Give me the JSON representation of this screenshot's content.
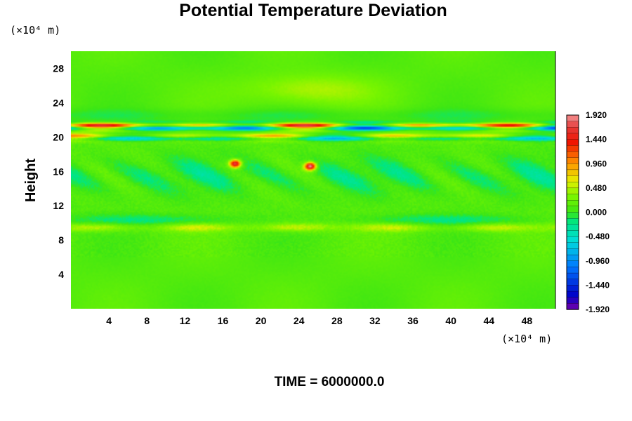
{
  "chart_data": {
    "type": "heatmap",
    "title": "Potential Temperature Deviation",
    "ylabel": "Height",
    "x_unit": "(×10⁴ m)",
    "y_unit": "(×10⁴ m)",
    "xlim": [
      0,
      51
    ],
    "ylim": [
      0,
      30
    ],
    "x_ticks": [
      "4",
      "8",
      "12",
      "16",
      "20",
      "24",
      "28",
      "32",
      "36",
      "40",
      "44",
      "48"
    ],
    "y_ticks": [
      "4",
      "8",
      "12",
      "16",
      "20",
      "24",
      "28"
    ],
    "x_tick_values": [
      4,
      8,
      12,
      16,
      20,
      24,
      28,
      32,
      36,
      40,
      44,
      48
    ],
    "y_tick_values": [
      4,
      8,
      12,
      16,
      20,
      24,
      28
    ],
    "colorbar": {
      "min": -1.92,
      "max": 1.92,
      "labels": [
        "1.920",
        "1.440",
        "0.960",
        "0.480",
        "0.000",
        "-0.480",
        "-0.960",
        "-1.440",
        "-1.920"
      ],
      "label_values": [
        1.92,
        1.44,
        0.96,
        0.48,
        0.0,
        -0.48,
        -0.96,
        -1.44,
        -1.92
      ]
    },
    "field_features": [
      {
        "kind": "wave-band",
        "y": 21.2,
        "amplitude": 1.9
      },
      {
        "kind": "wave-band",
        "y": 20.0,
        "amplitude": 1.0
      },
      {
        "kind": "weak-warm-layer",
        "y": 9.5,
        "amplitude": 0.45
      },
      {
        "kind": "hot-spot",
        "x": 17.3,
        "y": 16.9,
        "amplitude": 1.7
      },
      {
        "kind": "hot-spot",
        "x": 25.2,
        "y": 16.6,
        "amplitude": 1.9
      }
    ],
    "grid": false
  },
  "footer": {
    "time_label": "TIME = 6000000.0"
  }
}
